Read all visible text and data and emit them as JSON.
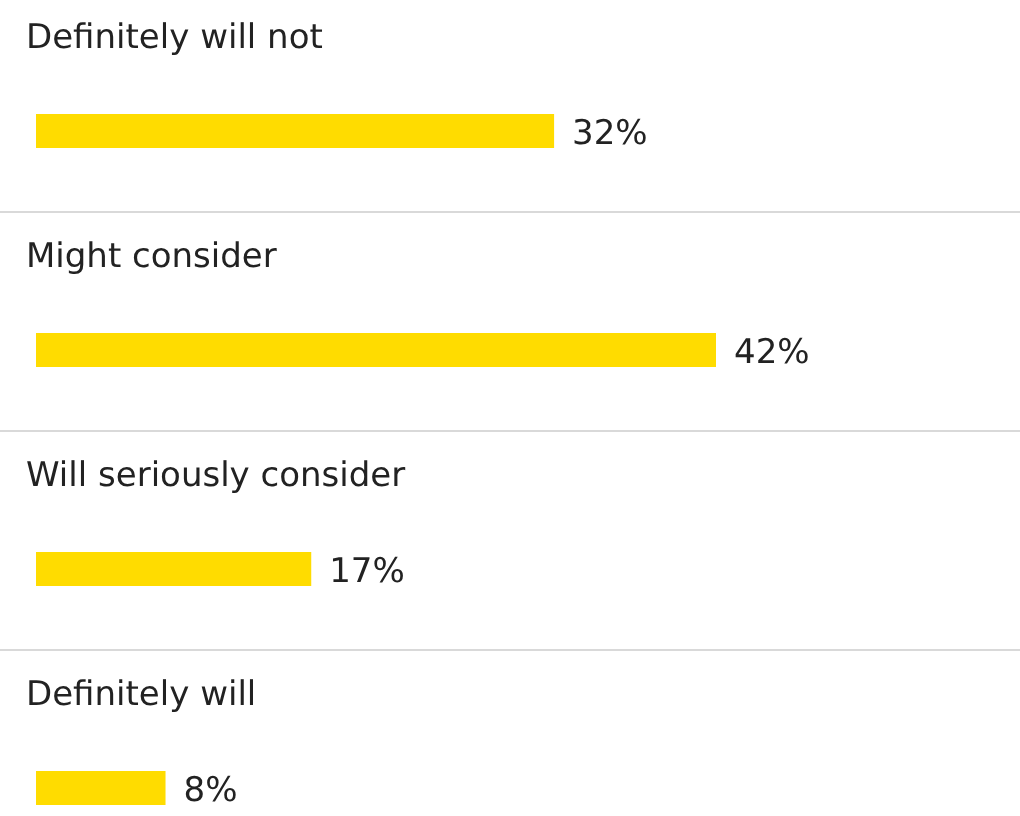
{
  "chart_data": {
    "type": "bar",
    "orientation": "horizontal",
    "categories": [
      "Definitely will not",
      "Might consider",
      "Will seriously consider",
      "Definitely will"
    ],
    "values": [
      32,
      42,
      17,
      8
    ],
    "color": "#ffdc00",
    "value_labels": [
      "32%",
      "42%",
      "17%",
      "8%"
    ]
  }
}
